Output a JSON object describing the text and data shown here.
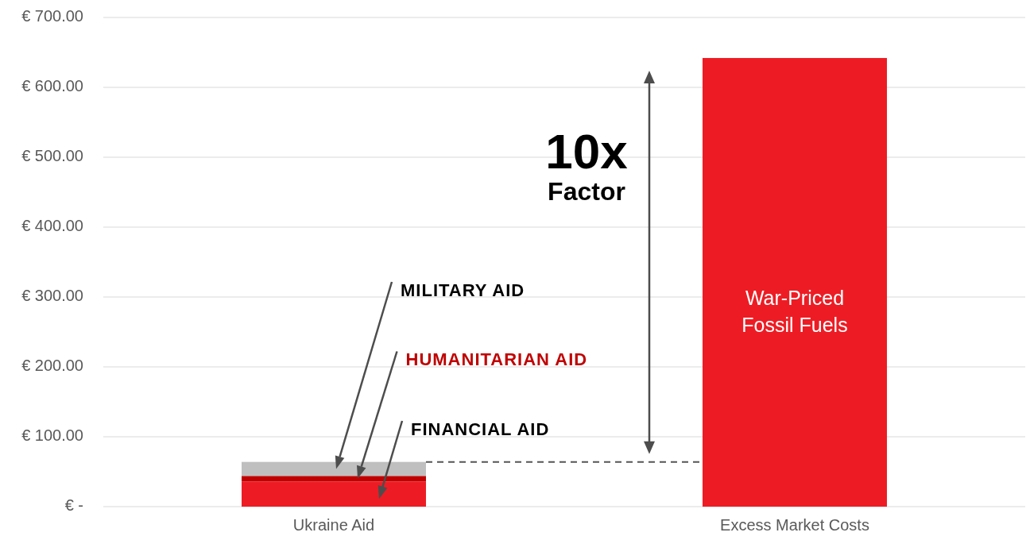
{
  "chart_data": {
    "type": "bar",
    "stacked": true,
    "categories": [
      "Ukraine Aid",
      "Excess Market Costs"
    ],
    "series": [
      {
        "name": "FINANCIAL AID",
        "color": "#ed1c24",
        "values": [
          36,
          null
        ]
      },
      {
        "name": "HUMANITARIAN AID",
        "color": "#c00000",
        "values": [
          8,
          null
        ]
      },
      {
        "name": "MILITARY AID",
        "color": "#bfbfbf",
        "values": [
          20,
          null
        ]
      },
      {
        "name": "War-Priced Fossil Fuels",
        "color": "#ed1c24",
        "values": [
          null,
          642
        ]
      }
    ],
    "ylim": [
      0,
      700
    ],
    "yticks": [
      {
        "value": 0,
        "label": "€ -"
      },
      {
        "value": 100,
        "label": "€ 100.00"
      },
      {
        "value": 200,
        "label": "€ 200.00"
      },
      {
        "value": 300,
        "label": "€ 300.00"
      },
      {
        "value": 400,
        "label": "€ 400.00"
      },
      {
        "value": 500,
        "label": "€ 500.00"
      },
      {
        "value": 600,
        "label": "€ 600.00"
      },
      {
        "value": 700,
        "label": "€ 700.00"
      }
    ],
    "grid": "y",
    "ref_lines": [
      {
        "axis": "y",
        "value": 64,
        "color": "#555555",
        "line_style": "dashed"
      }
    ],
    "annotations": [
      "10x",
      "Factor"
    ]
  }
}
